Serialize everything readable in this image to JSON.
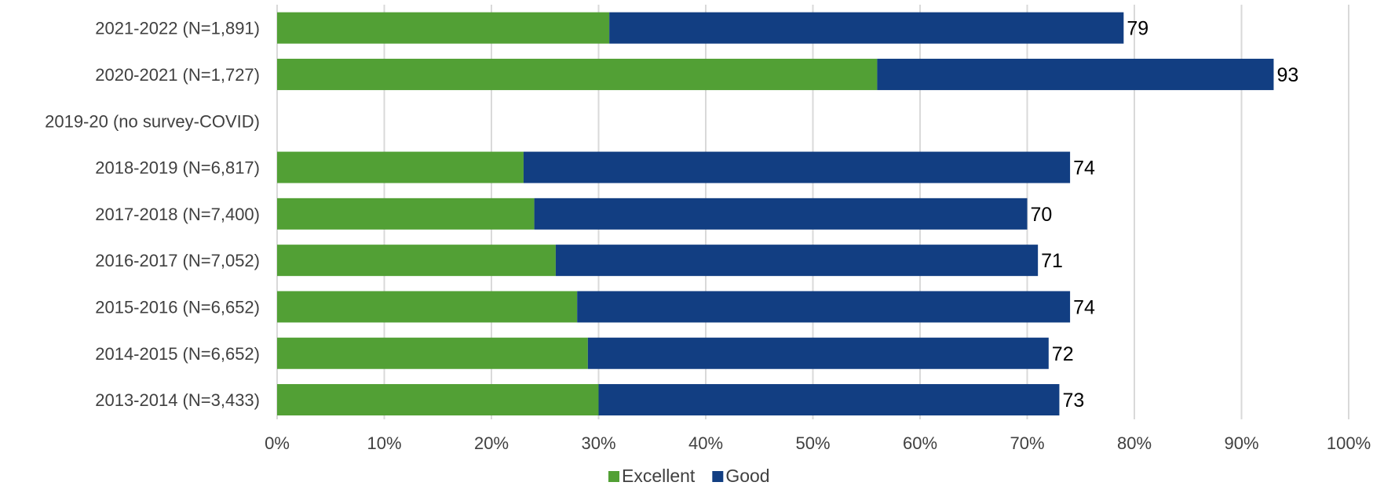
{
  "chart_data": {
    "type": "bar",
    "orientation": "horizontal",
    "stacked": true,
    "categories": [
      "2021-2022 (N=1,891)",
      "2020-2021 (N=1,727)",
      "2019-20 (no survey-COVID)",
      "2018-2019 (N=6,817)",
      "2017-2018 (N=7,400)",
      "2016-2017 (N=7,052)",
      "2015-2016 (N=6,652)",
      "2014-2015 (N=6,652)",
      "2013-2014 (N=3,433)"
    ],
    "series": [
      {
        "name": "Excellent",
        "color": "#52a035",
        "values": [
          31,
          56,
          null,
          23,
          24,
          26,
          28,
          29,
          30
        ]
      },
      {
        "name": "Good",
        "color": "#123e82",
        "values": [
          48,
          37,
          null,
          51,
          46,
          45,
          46,
          43,
          43
        ]
      }
    ],
    "total_labels": [
      "79",
      "93",
      "",
      "74",
      "70",
      "71",
      "74",
      "72",
      "73"
    ],
    "xlim": [
      0,
      100
    ],
    "xticks": [
      "0%",
      "10%",
      "20%",
      "30%",
      "40%",
      "50%",
      "60%",
      "70%",
      "80%",
      "90%",
      "100%"
    ],
    "grid": true,
    "legend_position": "bottom"
  }
}
